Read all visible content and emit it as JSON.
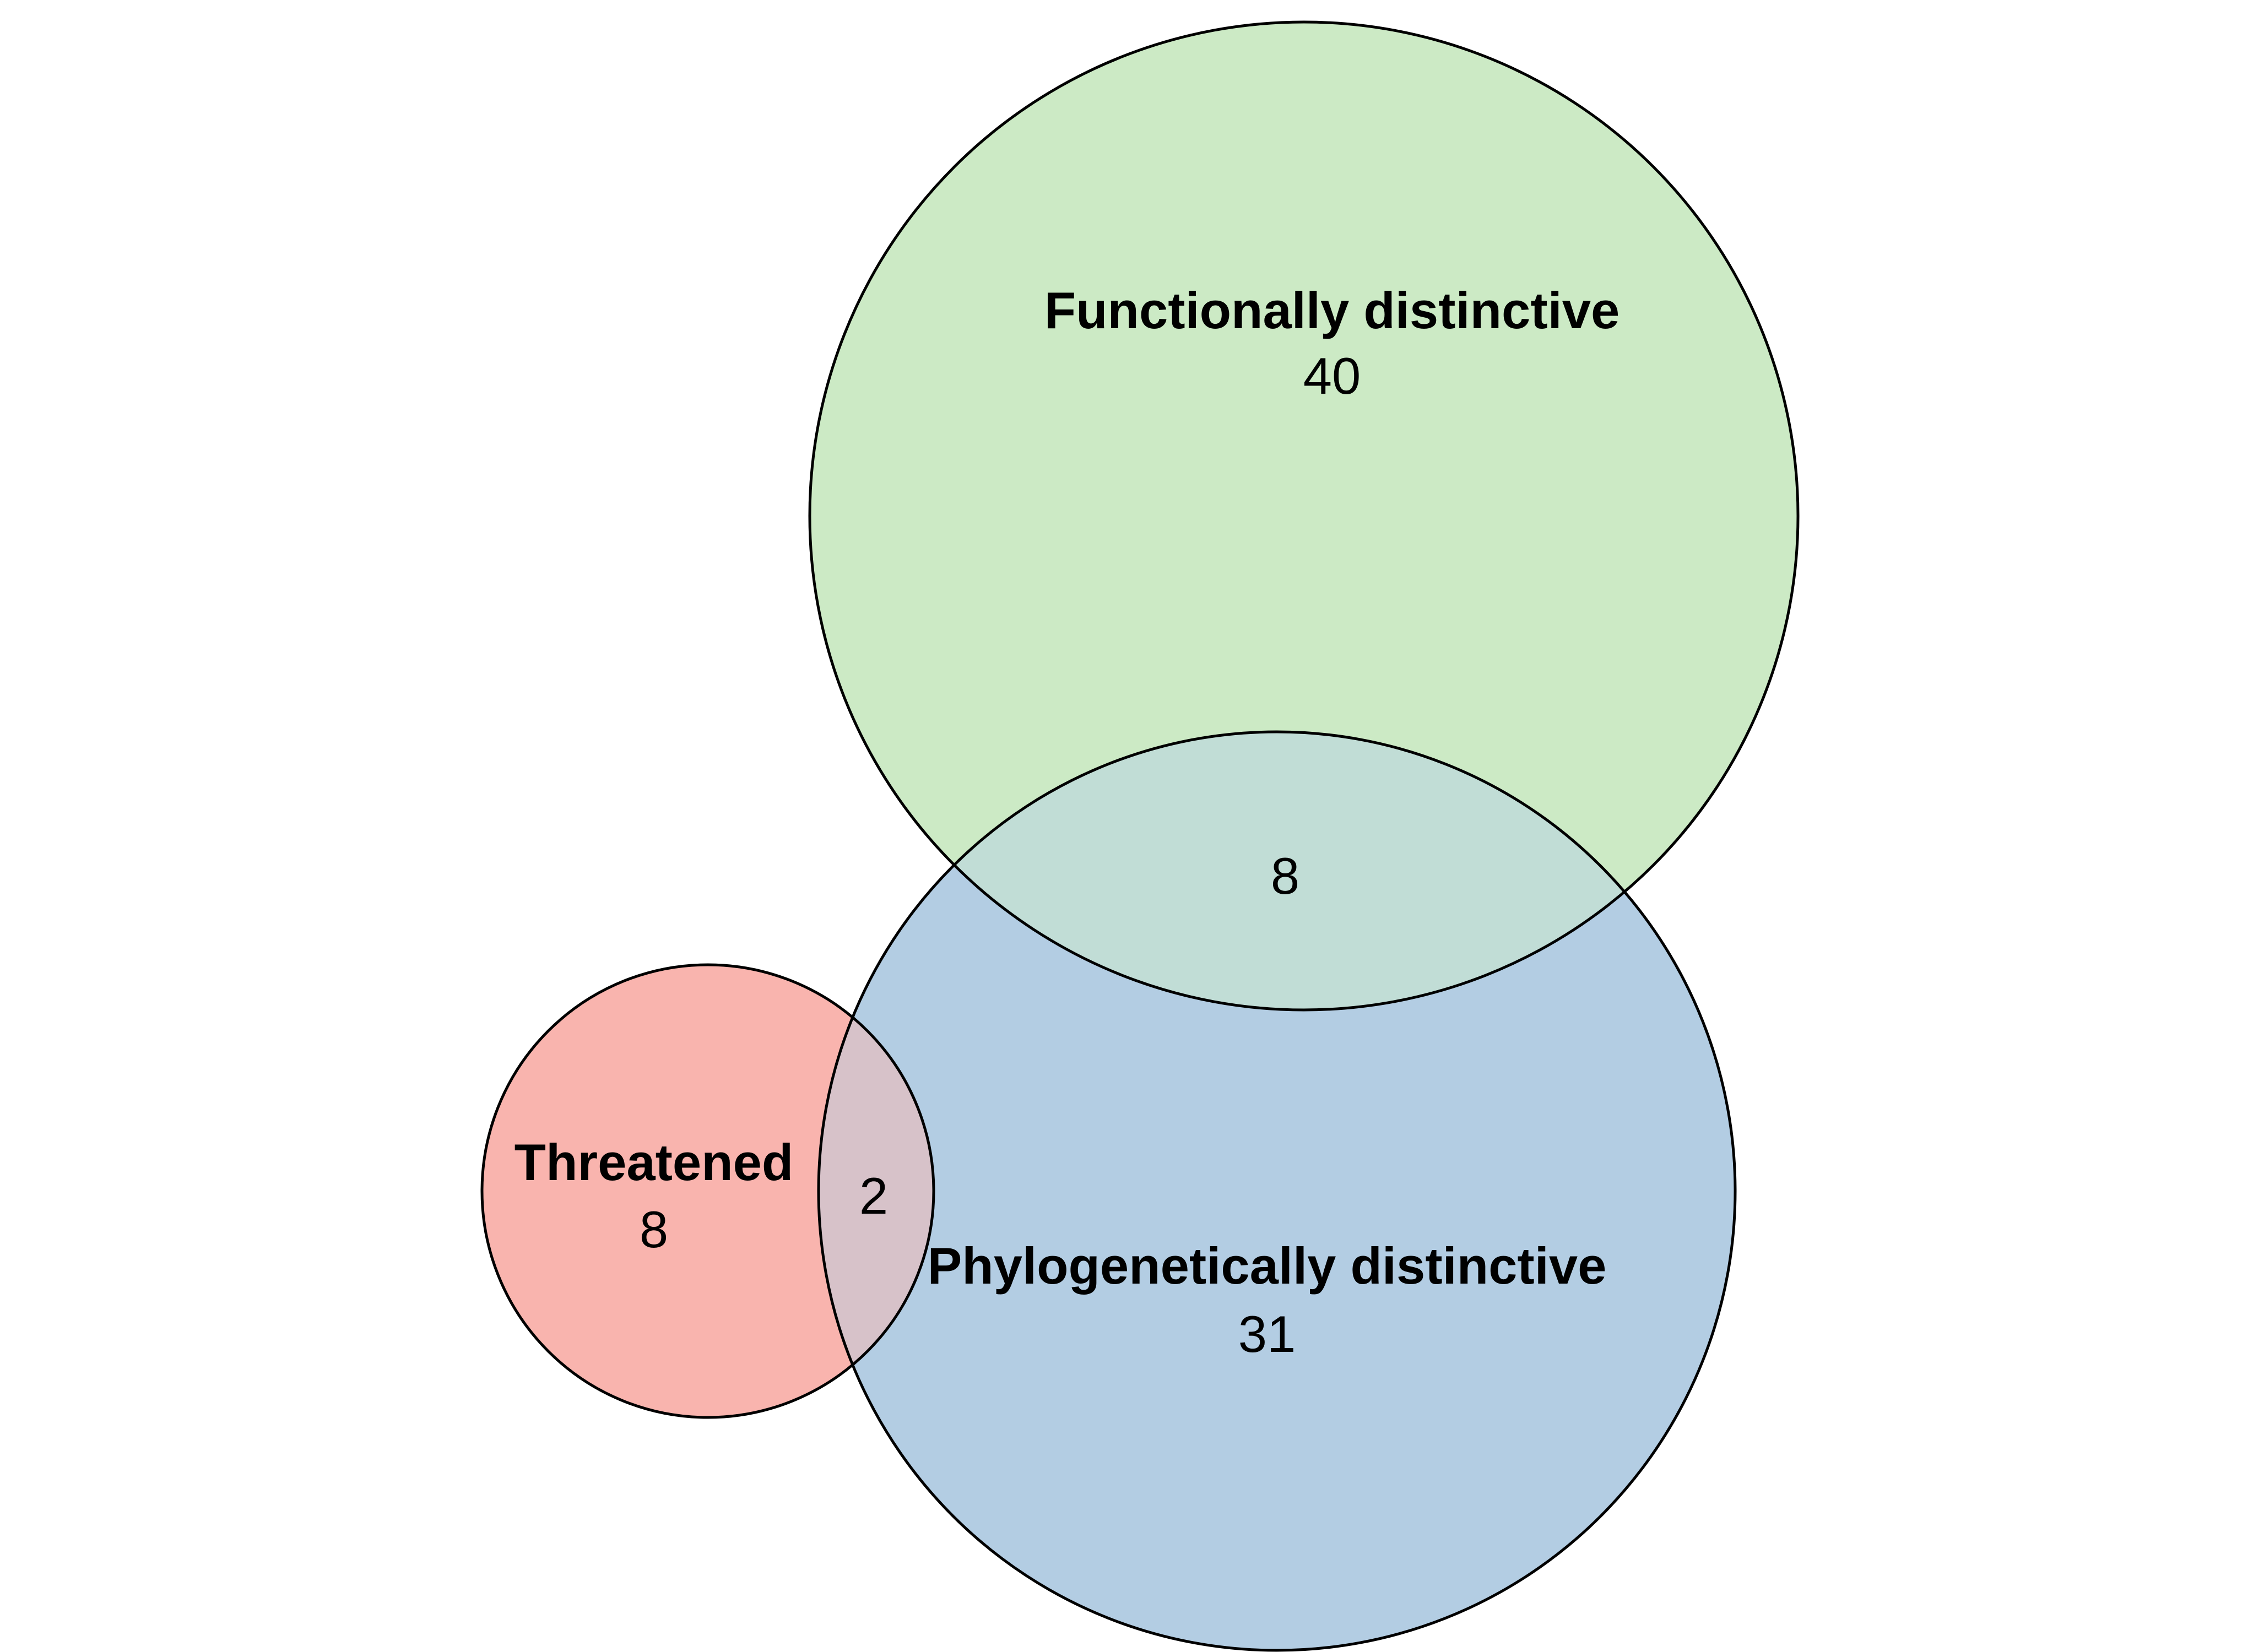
{
  "sets": [
    {
      "id": "functional",
      "name": "Functionally distinctive",
      "count": "40",
      "color": "#CCEAC5"
    },
    {
      "id": "phylogenetic",
      "name": "Phylogenetically distinctive",
      "count": "31",
      "color": "#B3CDE3"
    },
    {
      "id": "threatened",
      "name": "Threatened",
      "count": "8",
      "color": "#F9B4AE"
    }
  ],
  "intersections": {
    "functional_phylogenetic": "8",
    "threatened_phylogenetic": "2"
  },
  "colors": {
    "functional_phylogenetic_overlap": "#C1DDD6",
    "threatened_phylogenetic_overlap": "#D7C2C9",
    "outline": "#000000",
    "background": "#FFFFFF"
  }
}
